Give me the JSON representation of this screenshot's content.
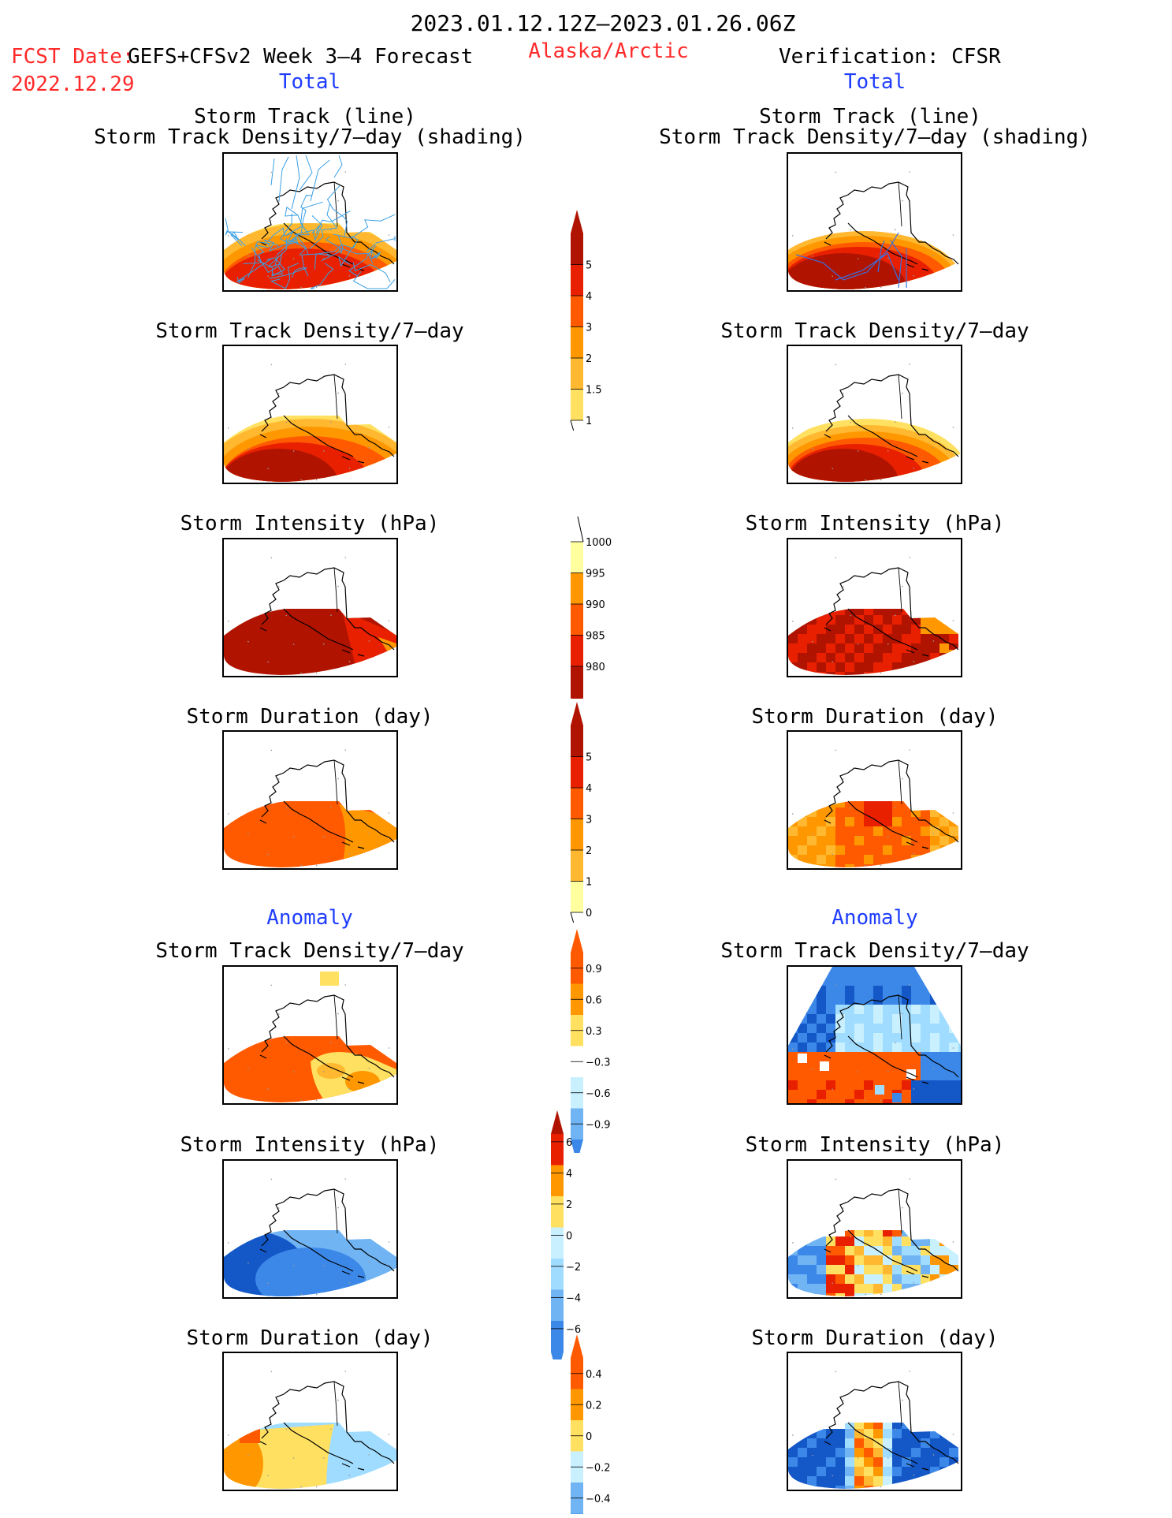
{
  "header": {
    "period": "2023.01.12.12Z–2023.01.26.06Z",
    "fcst_label": "FCST Date:",
    "fcst_model": "GEFS+CFSv2 Week 3–4 Forecast",
    "fcst_date": "2022.12.29",
    "region": "Alaska/Arctic",
    "verification": "Verification: CFSR",
    "total_left": "Total",
    "total_right": "Total",
    "anomaly_left": "Anomaly",
    "anomaly_right": "Anomaly"
  },
  "panel_titles": {
    "track_line": "Storm Track (line)",
    "track_shading": "Storm Track Density/7–day (shading)",
    "density": "Storm Track Density/7–day",
    "intensity": "Storm Intensity (hPa)",
    "duration": "Storm Duration (day)"
  },
  "colors": {
    "yellow_pale": "#ffffa0",
    "yellow": "#ffe060",
    "gold": "#ffb830",
    "orange": "#ff9800",
    "dark_orange": "#ff5a00",
    "red": "#e82000",
    "dark_red": "#b01400",
    "deep_red": "#8c0a00",
    "light_cyan": "#c8f0ff",
    "cyan": "#a0dcff",
    "light_blue": "#70b4f4",
    "blue": "#3c88e8",
    "dark_blue": "#1458c8",
    "track_line": "#3aa0e6"
  },
  "chart_data": [
    {
      "type": "heatmap",
      "name": "colorbar-total-density",
      "ticks": [
        "1",
        "1.5",
        "2",
        "3",
        "4",
        "5"
      ]
    },
    {
      "type": "heatmap",
      "name": "colorbar-total-intensity",
      "ticks": [
        "1000",
        "995",
        "990",
        "985",
        "980"
      ]
    },
    {
      "type": "heatmap",
      "name": "colorbar-total-duration",
      "ticks": [
        "0",
        "1",
        "2",
        "3",
        "4",
        "5"
      ]
    },
    {
      "type": "heatmap",
      "name": "colorbar-anom-density",
      "ticks": [
        "0.9",
        "0.6",
        "0.3",
        "−0.3",
        "−0.6",
        "−0.9"
      ]
    },
    {
      "type": "heatmap",
      "name": "colorbar-anom-intensity",
      "ticks": [
        "6",
        "4",
        "2",
        "0",
        "−2",
        "−4",
        "−6"
      ]
    },
    {
      "type": "heatmap",
      "name": "colorbar-anom-duration",
      "ticks": [
        "0.4",
        "0.2",
        "0",
        "−0.2",
        "−0.4"
      ]
    }
  ]
}
